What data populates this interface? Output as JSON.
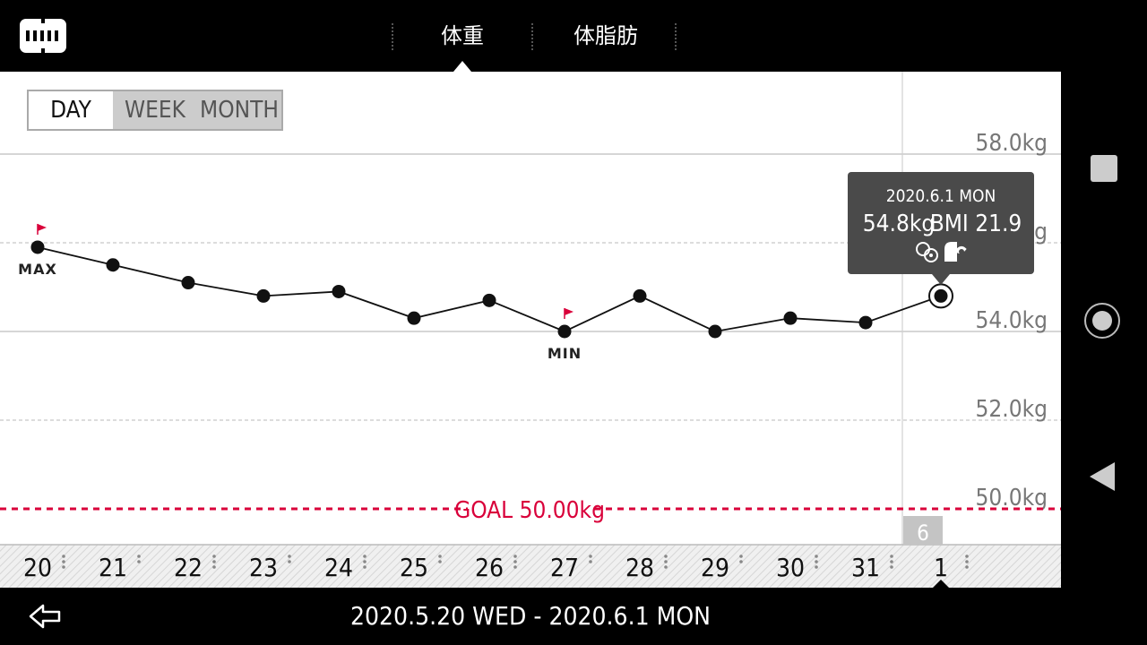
{
  "header": {
    "tabs": [
      {
        "label": "体重",
        "selected": true
      },
      {
        "label": "体脂肪",
        "selected": false
      }
    ]
  },
  "period": {
    "options": [
      "DAY",
      "WEEK",
      "MONTH"
    ],
    "selected": "DAY"
  },
  "tooltip": {
    "date": "2020.6.1 MON",
    "weight": "54.8kg",
    "bmi": "BMI 21.9"
  },
  "markers": {
    "max": "MAX",
    "min": "MIN"
  },
  "goal": {
    "label": "GOAL 50.00kg",
    "value": 50.0
  },
  "month_badge": "6",
  "footer": {
    "range": "2020.5.20 WED - 2020.6.1 MON"
  },
  "colors": {
    "accent": "#d9003a",
    "tooltip_bg": "#4a4a4a"
  },
  "chart_data": {
    "type": "line",
    "x": [
      "20",
      "21",
      "22",
      "23",
      "24",
      "25",
      "26",
      "27",
      "28",
      "29",
      "30",
      "31",
      "1"
    ],
    "series": [
      {
        "values": [
          55.9,
          55.5,
          55.1,
          54.8,
          54.9,
          54.3,
          54.7,
          54.0,
          54.8,
          54.0,
          54.3,
          54.2,
          54.8
        ]
      }
    ],
    "ytick_labels": [
      "58.0kg",
      "56.0kg",
      "54.0kg",
      "52.0kg",
      "50.0kg"
    ],
    "yticks": [
      58,
      56,
      54,
      52,
      50
    ],
    "ylim": [
      49.2,
      59.8
    ],
    "max_index": 0,
    "min_index": 7,
    "selected_index": 12
  }
}
